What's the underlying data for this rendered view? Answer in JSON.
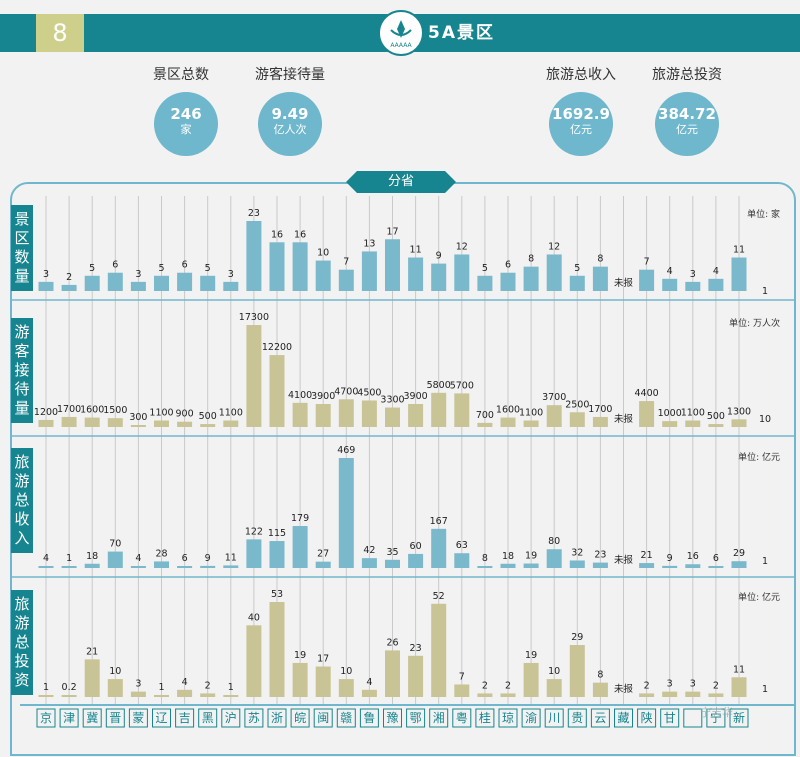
{
  "header": {
    "page_number": "8",
    "title": "5A景区"
  },
  "kpis": [
    {
      "label": "景区总数",
      "value": "246",
      "unit": "家"
    },
    {
      "label": "游客接待量",
      "value": "9.49",
      "unit": "亿人次"
    },
    {
      "label": "旅游总收入",
      "value": "1692.9",
      "unit": "亿元"
    },
    {
      "label": "旅游总投资",
      "value": "384.72",
      "unit": "亿元"
    }
  ],
  "colors": {
    "teal": "#17858f",
    "blue_bar": "#7ab8cb",
    "olive_bar": "#c9c495",
    "circle": "#6fb7cc"
  },
  "chart_data": {
    "type": "bar",
    "title": "分省",
    "categories": [
      "京",
      "津",
      "冀",
      "晋",
      "蒙",
      "辽",
      "吉",
      "黑",
      "沪",
      "苏",
      "浙",
      "皖",
      "闽",
      "赣",
      "鲁",
      "豫",
      "鄂",
      "湘",
      "粤",
      "桂",
      "琼",
      "渝",
      "川",
      "贵",
      "云",
      "藏",
      "陕",
      "甘",
      "青",
      "宁",
      "新"
    ],
    "category_labels_shown": [
      "京",
      "津",
      "冀",
      "晋",
      "蒙",
      "辽",
      "吉",
      "黑",
      "沪",
      "苏",
      "浙",
      "皖",
      "闽",
      "赣",
      "鲁",
      "豫",
      "鄂",
      "湘",
      "粤",
      "桂",
      "琼",
      "渝",
      "川",
      "贵",
      "云",
      "藏",
      "陕",
      "甘",
      "",
      "宁",
      "新"
    ],
    "not_reported_label": "未报",
    "panels": [
      {
        "title": "景区数量",
        "unit": "单位: 家",
        "color": "#7ab8cb",
        "values": [
          3,
          2,
          5,
          6,
          3,
          5,
          6,
          5,
          3,
          23,
          16,
          16,
          10,
          7,
          13,
          17,
          11,
          9,
          12,
          5,
          6,
          8,
          12,
          5,
          8,
          null,
          7,
          4,
          3,
          4,
          11
        ],
        "labels": [
          "3",
          "2",
          "5",
          "6",
          "3",
          "5",
          "6",
          "5",
          "3",
          "23",
          "16",
          "16",
          "10",
          "7",
          "13",
          "17",
          "11",
          "9",
          "12",
          "5",
          "6",
          "8",
          "12",
          "5",
          "8",
          "未报",
          "7",
          "4",
          "3",
          "4",
          "11"
        ],
        "ylim": [
          0,
          23
        ]
      },
      {
        "title": "游客接待量",
        "unit": "单位: 万人次",
        "color": "#c9c495",
        "values": [
          1200,
          1700,
          1600,
          1500,
          300,
          1100,
          900,
          500,
          1100,
          17300,
          12200,
          4100,
          3900,
          4700,
          4500,
          3300,
          3900,
          5800,
          5700,
          700,
          1600,
          1100,
          3700,
          2500,
          1700,
          null,
          4400,
          1000,
          1100,
          500,
          1300
        ],
        "labels": [
          "1200",
          "1700",
          "1600",
          "1500",
          "300",
          "1100",
          "900",
          "500",
          "1100",
          "17300",
          "12200",
          "4100",
          "3900",
          "4700",
          "4500",
          "3300",
          "3900",
          "5800",
          "5700",
          "700",
          "1600",
          "1100",
          "3700",
          "2500",
          "1700",
          "未报",
          "4400",
          "1000",
          "1100",
          "500",
          "1300"
        ],
        "ylim": [
          0,
          17300
        ]
      },
      {
        "title": "旅游总收入",
        "unit": "单位: 亿元",
        "color": "#7ab8cb",
        "values": [
          4,
          1,
          18,
          70,
          4,
          28,
          6,
          9,
          11,
          122,
          115,
          179,
          27,
          469,
          42,
          35,
          60,
          167,
          63,
          8,
          18,
          19,
          80,
          32,
          23,
          null,
          21,
          9,
          16,
          6,
          29
        ],
        "labels": [
          "4",
          "1",
          "18",
          "70",
          "4",
          "28",
          "6",
          "9",
          "11",
          "122",
          "115",
          "179",
          "27",
          "469",
          "42",
          "35",
          "60",
          "167",
          "63",
          "8",
          "18",
          "19",
          "80",
          "32",
          "23",
          "未报",
          "21",
          "9",
          "16",
          "6",
          "29"
        ],
        "ylim": [
          0,
          469
        ]
      },
      {
        "title": "旅游总投资",
        "unit": "单位: 亿元",
        "color": "#c9c495",
        "values": [
          1,
          0.2,
          21,
          10,
          3,
          1,
          4,
          2,
          1,
          40,
          53,
          19,
          17,
          10,
          4,
          26,
          23,
          52,
          7,
          2,
          2,
          19,
          10,
          29,
          8,
          null,
          2,
          3,
          3,
          2,
          11
        ],
        "labels": [
          "1",
          "0.2",
          "21",
          "10",
          "3",
          "1",
          "4",
          "2",
          "1",
          "40",
          "53",
          "19",
          "17",
          "10",
          "4",
          "26",
          "23",
          "52",
          "7",
          "2",
          "2",
          "19",
          "10",
          "29",
          "8",
          "未报",
          "2",
          "3",
          "3",
          "2",
          "11"
        ],
        "ylim": [
          0,
          53
        ]
      }
    ],
    "extra_right_labels": [
      "1",
      "10",
      "1",
      "1"
    ],
    "grid": "vertical",
    "legend": "none"
  },
  "watermark": "宁志华"
}
